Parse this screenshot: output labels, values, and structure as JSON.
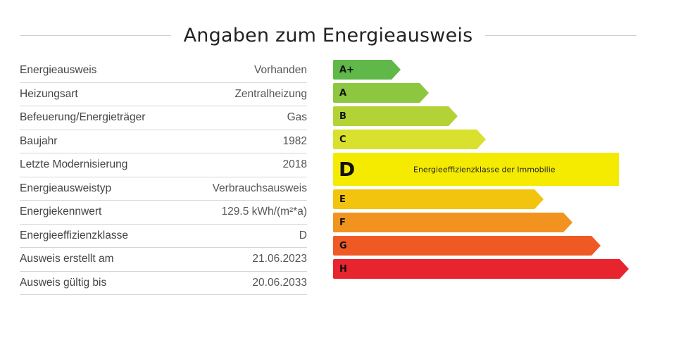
{
  "title": "Angaben zum Energieausweis",
  "rows": [
    {
      "label": "Energieausweis",
      "value": "Vorhanden"
    },
    {
      "label": "Heizungsart",
      "value": "Zentralheizung"
    },
    {
      "label": "Befeuerung/Energieträger",
      "value": "Gas"
    },
    {
      "label": "Baujahr",
      "value": "1982"
    },
    {
      "label": "Letzte Modernisierung",
      "value": "2018"
    },
    {
      "label": "Energieausweistyp",
      "value": "Verbrauchsausweis"
    },
    {
      "label": "Energiekennwert",
      "value": "129.5 kWh/(m²*a)"
    },
    {
      "label": "Energieeffizienzklasse",
      "value": "D"
    },
    {
      "label": "Ausweis erstellt am",
      "value": "21.06.2023"
    },
    {
      "label": "Ausweis gültig bis",
      "value": "20.06.2033"
    }
  ],
  "scale": {
    "current_class": "D",
    "current_description": "Energieeffizienzklasse der Immobilie",
    "classes": [
      {
        "label": "A+",
        "color": "#5fb848"
      },
      {
        "label": "A",
        "color": "#8dc63f"
      },
      {
        "label": "B",
        "color": "#b3d236"
      },
      {
        "label": "C",
        "color": "#d9e02e"
      },
      {
        "label": "D",
        "color": "#f5eb00"
      },
      {
        "label": "E",
        "color": "#f2c40d"
      },
      {
        "label": "F",
        "color": "#f29320"
      },
      {
        "label": "G",
        "color": "#ef5a24"
      },
      {
        "label": "H",
        "color": "#e8242f"
      }
    ]
  }
}
